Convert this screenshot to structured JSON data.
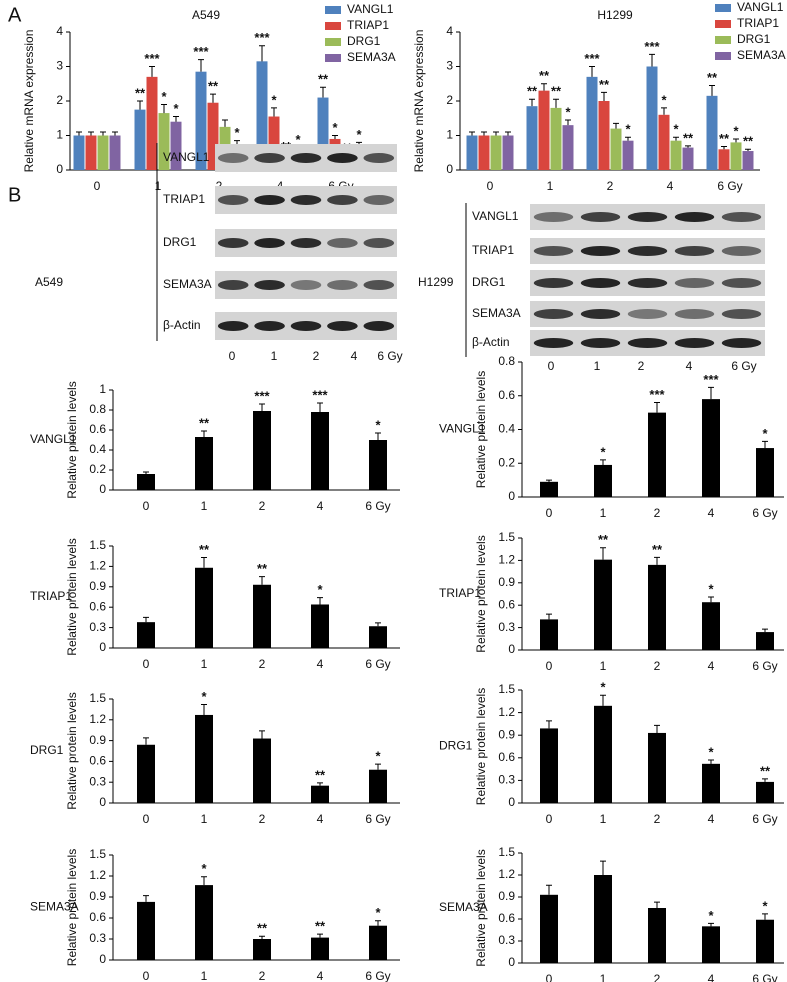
{
  "panel_labels": [
    "A",
    "B"
  ],
  "chart_data": [
    {
      "type": "bar",
      "title": "A549",
      "ylabel": "Relative mRNA expression",
      "categories": [
        "0",
        "1",
        "2",
        "4",
        "6 Gy"
      ],
      "ylim": [
        0,
        4
      ],
      "yticks": [
        0,
        1,
        2,
        3,
        4
      ],
      "legend": "upper right",
      "series": [
        {
          "name": "VANGL1",
          "color": "#4f81bd",
          "values": [
            1.0,
            1.75,
            2.85,
            3.15,
            2.1
          ],
          "errors": [
            0.1,
            0.25,
            0.35,
            0.45,
            0.3
          ],
          "annotations": [
            null,
            "**",
            "***",
            "***",
            "**"
          ]
        },
        {
          "name": "TRIAP1",
          "color": "#d9463e",
          "values": [
            1.0,
            2.7,
            1.95,
            1.55,
            0.9
          ],
          "errors": [
            0.1,
            0.3,
            0.25,
            0.25,
            0.1
          ],
          "annotations": [
            null,
            "***",
            "**",
            "*",
            "*"
          ]
        },
        {
          "name": "DRG1",
          "color": "#9bbb59",
          "values": [
            1.0,
            1.65,
            1.25,
            0.4,
            0.35
          ],
          "errors": [
            0.1,
            0.25,
            0.2,
            0.05,
            0.05
          ],
          "annotations": [
            null,
            "*",
            null,
            "**",
            "**"
          ]
        },
        {
          "name": "SEMA3A",
          "color": "#8064a2",
          "values": [
            1.0,
            1.4,
            0.75,
            0.6,
            0.7
          ],
          "errors": [
            0.1,
            0.15,
            0.1,
            0.05,
            0.1
          ],
          "annotations": [
            null,
            "*",
            "*",
            "*",
            "*"
          ]
        }
      ]
    },
    {
      "type": "bar",
      "title": "H1299",
      "ylabel": "Relative mRNA expression",
      "categories": [
        "0",
        "1",
        "2",
        "4",
        "6 Gy"
      ],
      "ylim": [
        0,
        4
      ],
      "yticks": [
        0,
        1,
        2,
        3,
        4
      ],
      "legend": "upper right",
      "series": [
        {
          "name": "VANGL1",
          "color": "#4f81bd",
          "values": [
            1.0,
            1.85,
            2.7,
            3.0,
            2.15
          ],
          "errors": [
            0.1,
            0.2,
            0.3,
            0.35,
            0.3
          ],
          "annotations": [
            null,
            "**",
            "***",
            "***",
            "**"
          ]
        },
        {
          "name": "TRIAP1",
          "color": "#d9463e",
          "values": [
            1.0,
            2.3,
            2.0,
            1.6,
            0.6
          ],
          "errors": [
            0.1,
            0.2,
            0.25,
            0.2,
            0.08
          ],
          "annotations": [
            null,
            "**",
            "**",
            "*",
            "**"
          ]
        },
        {
          "name": "DRG1",
          "color": "#9bbb59",
          "values": [
            1.0,
            1.8,
            1.2,
            0.85,
            0.8
          ],
          "errors": [
            0.1,
            0.25,
            0.15,
            0.1,
            0.1
          ],
          "annotations": [
            null,
            "**",
            null,
            "*",
            "*"
          ]
        },
        {
          "name": "SEMA3A",
          "color": "#8064a2",
          "values": [
            1.0,
            1.3,
            0.85,
            0.65,
            0.55
          ],
          "errors": [
            0.1,
            0.15,
            0.1,
            0.05,
            0.05
          ],
          "annotations": [
            null,
            "*",
            "*",
            "**",
            "**"
          ]
        }
      ]
    },
    {
      "type": "bar",
      "ylabel": "Relative protein levels",
      "categories": [
        "0",
        "1",
        "2",
        "4",
        "6 Gy"
      ],
      "ylim": [
        0,
        1
      ],
      "yticks": [
        0,
        0.2,
        0.4,
        0.6,
        0.8,
        1
      ],
      "series": [
        {
          "name": "VANGL1",
          "color": "#000000",
          "values": [
            0.16,
            0.53,
            0.79,
            0.78,
            0.5
          ],
          "errors": [
            0.02,
            0.06,
            0.07,
            0.09,
            0.07
          ],
          "annotations": [
            null,
            "**",
            "***",
            "***",
            "*"
          ]
        }
      ]
    },
    {
      "type": "bar",
      "ylabel": "Relative protein levels",
      "categories": [
        "0",
        "1",
        "2",
        "4",
        "6 Gy"
      ],
      "ylim": [
        0,
        1.5
      ],
      "yticks": [
        0,
        0.3,
        0.6,
        0.9,
        1.2,
        1.5
      ],
      "series": [
        {
          "name": "TRIAP1",
          "color": "#000000",
          "values": [
            0.38,
            1.18,
            0.93,
            0.64,
            0.32
          ],
          "errors": [
            0.07,
            0.15,
            0.12,
            0.1,
            0.05
          ],
          "annotations": [
            null,
            "**",
            "**",
            "*",
            null
          ]
        }
      ]
    },
    {
      "type": "bar",
      "ylabel": "Relative protein levels",
      "categories": [
        "0",
        "1",
        "2",
        "4",
        "6 Gy"
      ],
      "ylim": [
        0,
        1.5
      ],
      "yticks": [
        0,
        0.3,
        0.6,
        0.9,
        1.2,
        1.5
      ],
      "series": [
        {
          "name": "DRG1",
          "color": "#000000",
          "values": [
            0.84,
            1.27,
            0.93,
            0.25,
            0.48
          ],
          "errors": [
            0.1,
            0.15,
            0.11,
            0.04,
            0.08
          ],
          "annotations": [
            null,
            "*",
            null,
            "**",
            "*"
          ]
        }
      ]
    },
    {
      "type": "bar",
      "ylabel": "Relative protein levels",
      "categories": [
        "0",
        "1",
        "2",
        "4",
        "6 Gy"
      ],
      "ylim": [
        0,
        1.5
      ],
      "yticks": [
        0,
        0.3,
        0.6,
        0.9,
        1.2,
        1.5
      ],
      "series": [
        {
          "name": "SEMA3A",
          "color": "#000000",
          "values": [
            0.83,
            1.07,
            0.3,
            0.32,
            0.49
          ],
          "errors": [
            0.09,
            0.12,
            0.04,
            0.05,
            0.07
          ],
          "annotations": [
            null,
            "*",
            "**",
            "**",
            "*"
          ]
        }
      ]
    },
    {
      "type": "bar",
      "ylabel": "Relative protein levels",
      "categories": [
        "0",
        "1",
        "2",
        "4",
        "6 Gy"
      ],
      "ylim": [
        0,
        0.8
      ],
      "yticks": [
        0,
        0.2,
        0.4,
        0.6,
        0.8
      ],
      "series": [
        {
          "name": "VANGL1",
          "color": "#000000",
          "values": [
            0.09,
            0.19,
            0.5,
            0.58,
            0.29
          ],
          "errors": [
            0.01,
            0.03,
            0.06,
            0.07,
            0.04
          ],
          "annotations": [
            null,
            "*",
            "***",
            "***",
            "*"
          ]
        }
      ]
    },
    {
      "type": "bar",
      "ylabel": "Relative protein levels",
      "categories": [
        "0",
        "1",
        "2",
        "4",
        "6 Gy"
      ],
      "ylim": [
        0,
        1.5
      ],
      "yticks": [
        0,
        0.3,
        0.6,
        0.9,
        1.2,
        1.5
      ],
      "series": [
        {
          "name": "TRIAP1",
          "color": "#000000",
          "values": [
            0.41,
            1.21,
            1.14,
            0.64,
            0.24
          ],
          "errors": [
            0.07,
            0.16,
            0.1,
            0.07,
            0.04
          ],
          "annotations": [
            null,
            "**",
            "**",
            "*",
            null
          ]
        }
      ]
    },
    {
      "type": "bar",
      "ylabel": "Relative protein levels",
      "categories": [
        "0",
        "1",
        "2",
        "4",
        "6 Gy"
      ],
      "ylim": [
        0,
        1.5
      ],
      "yticks": [
        0,
        0.3,
        0.6,
        0.9,
        1.2,
        1.5
      ],
      "series": [
        {
          "name": "DRG1",
          "color": "#000000",
          "values": [
            0.99,
            1.29,
            0.93,
            0.52,
            0.28
          ],
          "errors": [
            0.1,
            0.14,
            0.1,
            0.05,
            0.04
          ],
          "annotations": [
            null,
            "*",
            null,
            "*",
            "**"
          ]
        }
      ]
    },
    {
      "type": "bar",
      "ylabel": "Relative protein levels",
      "categories": [
        "0",
        "1",
        "2",
        "4",
        "6 Gy"
      ],
      "ylim": [
        0,
        1.5
      ],
      "yticks": [
        0,
        0.3,
        0.6,
        0.9,
        1.2,
        1.5
      ],
      "series": [
        {
          "name": "SEMA3A",
          "color": "#000000",
          "values": [
            0.93,
            1.2,
            0.75,
            0.5,
            0.59
          ],
          "errors": [
            0.13,
            0.19,
            0.08,
            0.04,
            0.08
          ],
          "annotations": [
            null,
            null,
            null,
            "*",
            "*"
          ]
        }
      ]
    }
  ],
  "blots": [
    {
      "cell_line": "A549",
      "proteins": [
        "VANGL1",
        "TRIAP1",
        "DRG1",
        "SEMA3A",
        "β-Actin"
      ],
      "lanes": [
        "0",
        "1",
        "2",
        "4",
        "6 Gy"
      ]
    },
    {
      "cell_line": "H1299",
      "proteins": [
        "VANGL1",
        "TRIAP1",
        "DRG1",
        "SEMA3A",
        "β-Actin"
      ],
      "lanes": [
        "0",
        "1",
        "2",
        "4",
        "6 Gy"
      ]
    }
  ]
}
